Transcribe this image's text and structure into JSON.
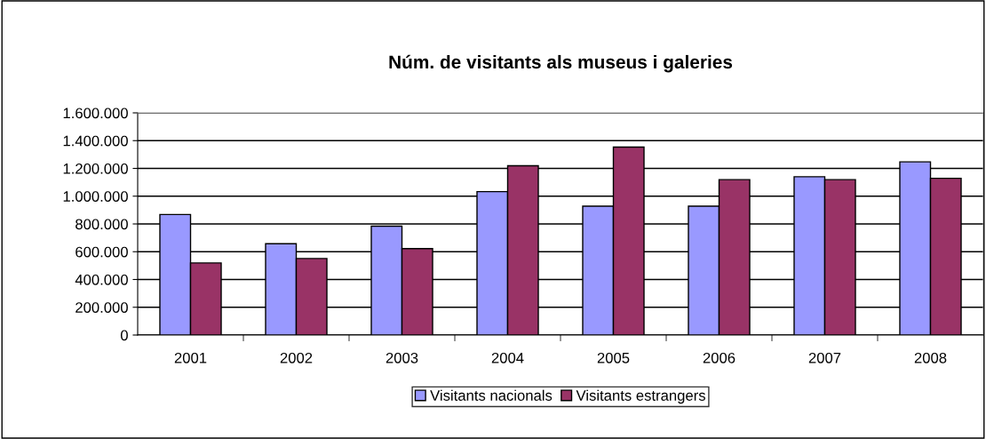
{
  "chart_data": {
    "type": "bar",
    "title": "Núm. de visitants als museus i galeries",
    "categories": [
      "2001",
      "2002",
      "2003",
      "2004",
      "2005",
      "2006",
      "2007",
      "2008"
    ],
    "series": [
      {
        "name": "Visitants nacionals",
        "color": "#9999ff",
        "values": [
          868000,
          658000,
          784000,
          1033000,
          928000,
          928000,
          1140000,
          1247000
        ]
      },
      {
        "name": "Visitants estrangers",
        "color": "#993366",
        "values": [
          519000,
          551000,
          622000,
          1219000,
          1354000,
          1119000,
          1119000,
          1129000
        ]
      }
    ],
    "ylim": [
      0,
      1600000
    ],
    "yticks": [
      0,
      {
        "value": 200000,
        "label": "200.000"
      },
      {
        "value": 400000,
        "label": "400.000"
      },
      {
        "value": 600000,
        "label": "600.000"
      },
      {
        "value": 800000,
        "label": "800.000"
      },
      {
        "value": 1000000,
        "label": "1.000.000"
      },
      {
        "value": 1200000,
        "label": "1.200.000"
      },
      {
        "value": 1400000,
        "label": "1.400.000"
      },
      {
        "value": 1600000,
        "label": "1.600.000"
      }
    ],
    "grid": "y",
    "legend": "bottom"
  }
}
